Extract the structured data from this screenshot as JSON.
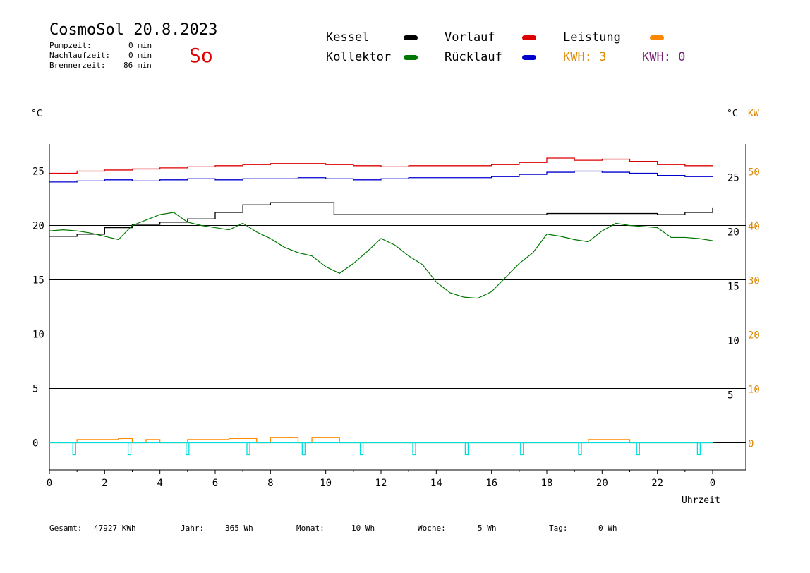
{
  "header": {
    "title": "CosmoSol 20.8.2023",
    "day": "So",
    "stats": [
      {
        "label": "Pumpzeit:",
        "value": "0 min"
      },
      {
        "label": "Nachlaufzeit:",
        "value": "0 min"
      },
      {
        "label": "Brennerzeit:",
        "value": "86 min"
      }
    ]
  },
  "legend": {
    "kessel": "Kessel",
    "kollektor": "Kollektor",
    "vorlauf": "Vorlauf",
    "ruecklauf": "Rücklauf",
    "leistung": "Leistung",
    "kwh1": "KWH: 3",
    "kwh2": "KWH: 0"
  },
  "colors": {
    "kessel": "#000000",
    "kollektor": "#007700",
    "vorlauf": "#dd0000",
    "ruecklauf": "#0000cc",
    "leistung": "#ff8800",
    "kwh2": "#772277",
    "pump": "#00dddd",
    "axis_right": "#dd8800"
  },
  "footer": [
    {
      "label": "Gesamt:",
      "value": "47927 KWh"
    },
    {
      "label": "Jahr:",
      "value": "365 Wh"
    },
    {
      "label": "Monat:",
      "value": "10 Wh"
    },
    {
      "label": "Woche:",
      "value": "5 Wh"
    },
    {
      "label": "Tag:",
      "value": "0 Wh"
    }
  ],
  "chart_data": {
    "type": "line",
    "xlabel": "Uhrzeit",
    "ylabel_left": "°C",
    "ylabel_right_1": "°C",
    "ylabel_right_2": "KW",
    "x_ticks": [
      "0",
      "2",
      "4",
      "6",
      "8",
      "10",
      "12",
      "14",
      "16",
      "18",
      "20",
      "22",
      "0"
    ],
    "y_left_ticks": [
      "0",
      "5",
      "10",
      "15",
      "20",
      "25"
    ],
    "y_right_temp_ticks": [
      "5",
      "10",
      "15",
      "20",
      "25"
    ],
    "y_right_kw_ticks": [
      "0",
      "10",
      "20",
      "30",
      "40",
      "50"
    ],
    "xlim": [
      0,
      24
    ],
    "ylim": [
      -2.5,
      27.5
    ],
    "series": [
      {
        "key": "vorlauf",
        "x": [
          0,
          1,
          2,
          3,
          4,
          5,
          6,
          7,
          8,
          9,
          10,
          11,
          12,
          13,
          14,
          15,
          16,
          17,
          18,
          19,
          20,
          21,
          22,
          23,
          24
        ],
        "y": [
          24.8,
          25.0,
          25.1,
          25.2,
          25.3,
          25.4,
          25.5,
          25.6,
          25.7,
          25.7,
          25.6,
          25.5,
          25.4,
          25.5,
          25.5,
          25.5,
          25.6,
          25.8,
          26.2,
          26.0,
          26.1,
          25.9,
          25.6,
          25.5,
          25.5
        ]
      },
      {
        "key": "ruecklauf",
        "x": [
          0,
          1,
          2,
          3,
          4,
          5,
          6,
          7,
          8,
          9,
          10,
          11,
          12,
          13,
          14,
          15,
          16,
          17,
          18,
          19,
          20,
          21,
          22,
          23,
          24
        ],
        "y": [
          24.0,
          24.1,
          24.2,
          24.1,
          24.2,
          24.3,
          24.2,
          24.3,
          24.3,
          24.4,
          24.3,
          24.2,
          24.3,
          24.4,
          24.4,
          24.4,
          24.5,
          24.7,
          24.9,
          25.0,
          24.9,
          24.8,
          24.6,
          24.5,
          24.5
        ]
      },
      {
        "key": "kessel",
        "x": [
          0,
          1,
          2,
          3,
          4,
          5,
          6,
          7,
          8,
          9,
          10,
          10.3,
          11,
          12,
          13,
          14,
          15,
          16,
          17,
          18,
          19,
          20,
          21,
          22,
          23,
          24
        ],
        "y": [
          19.0,
          19.2,
          19.8,
          20.1,
          20.3,
          20.6,
          21.2,
          21.9,
          22.1,
          22.1,
          22.1,
          21.0,
          21.0,
          21.0,
          21.0,
          21.0,
          21.0,
          21.0,
          21.0,
          21.1,
          21.1,
          21.1,
          21.1,
          21.0,
          21.2,
          21.6
        ]
      },
      {
        "key": "kollektor",
        "x": [
          0,
          0.5,
          1,
          1.5,
          2,
          2.5,
          3,
          3.5,
          4,
          4.5,
          5,
          5.5,
          6,
          6.5,
          7,
          7.5,
          8,
          8.5,
          9,
          9.5,
          10,
          10.5,
          11,
          11.5,
          12,
          12.5,
          13,
          13.5,
          14,
          14.5,
          15,
          15.5,
          16,
          16.5,
          17,
          17.5,
          18,
          18.5,
          19,
          19.5,
          20,
          20.5,
          21,
          21.5,
          22,
          22.5,
          23,
          23.5,
          24
        ],
        "y": [
          19.5,
          19.6,
          19.5,
          19.3,
          19.0,
          18.7,
          20.0,
          20.5,
          21.0,
          21.2,
          20.3,
          20.0,
          19.8,
          19.6,
          20.2,
          19.4,
          18.8,
          18.0,
          17.5,
          17.2,
          16.2,
          15.6,
          16.5,
          17.6,
          18.8,
          18.2,
          17.2,
          16.4,
          14.8,
          13.8,
          13.4,
          13.3,
          13.9,
          15.2,
          16.5,
          17.5,
          19.2,
          19.0,
          18.7,
          18.5,
          19.5,
          20.2,
          20.0,
          19.9,
          19.8,
          18.9,
          18.9,
          18.8,
          18.6
        ]
      },
      {
        "key": "leistung",
        "x": [
          0,
          0.9,
          1,
          1.5,
          2,
          2.5,
          3,
          3.5,
          4,
          4.5,
          5,
          5.5,
          6,
          6.5,
          7,
          7.5,
          8,
          8.5,
          9,
          9.5,
          10,
          10.5,
          11,
          19,
          19.5,
          20,
          20.5,
          21,
          24
        ],
        "y": [
          0,
          0,
          0.3,
          0.3,
          0.3,
          0.4,
          0,
          0.3,
          0,
          0,
          0.3,
          0.3,
          0.3,
          0.4,
          0.4,
          0,
          0.5,
          0.5,
          0,
          0.5,
          0.5,
          0,
          0,
          0,
          0.3,
          0.3,
          0.3,
          0,
          0
        ]
      },
      {
        "key": "pump",
        "x": [
          0.9,
          2.9,
          5.0,
          7.2,
          9.2,
          11.3,
          13.2,
          15.1,
          17.1,
          19.2,
          21.3,
          23.5
        ],
        "y": [
          0,
          0,
          0,
          0,
          0,
          0,
          0,
          0,
          0,
          0,
          0,
          0
        ]
      }
    ]
  }
}
